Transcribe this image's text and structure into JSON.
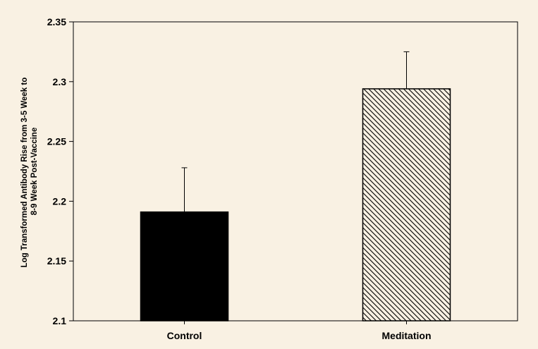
{
  "chart_data": {
    "type": "bar",
    "title": "",
    "xlabel": "",
    "ylabel_lines": [
      "Log Transformed Antibody Rise from 3-5 Week to",
      "8-9 Week Post-Vaccine"
    ],
    "categories": [
      "Control",
      "Meditation"
    ],
    "values": [
      2.191,
      2.294
    ],
    "error_upper": [
      2.228,
      2.325
    ],
    "bar_fills": [
      "solid-black",
      "diagonal-hatch"
    ],
    "ylim": [
      2.1,
      2.35
    ],
    "yticks": [
      "2.1",
      "2.15",
      "2.2",
      "2.25",
      "2.3",
      "2.35"
    ],
    "grid": false,
    "legend": "none"
  },
  "colors": {
    "background": "#f9f1e3",
    "plot_area": "#f9f1e3",
    "control_bar": "#000000",
    "hatch": "#000000"
  }
}
